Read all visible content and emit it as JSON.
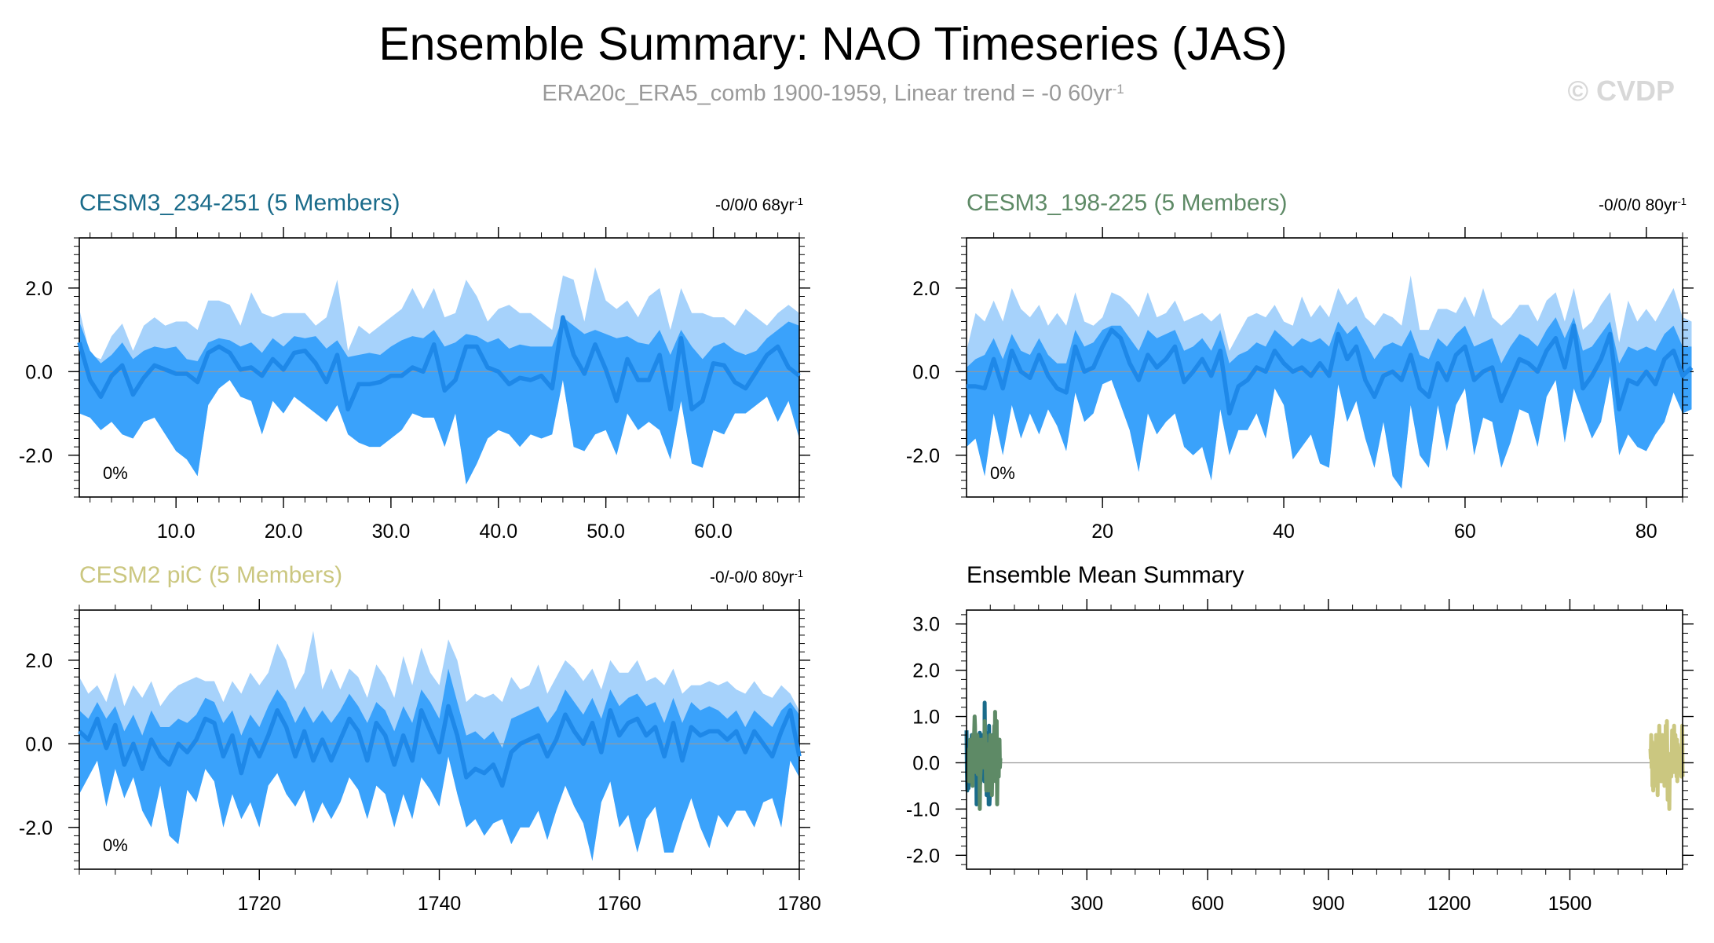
{
  "figure": {
    "title": "Ensemble Summary: NAO Timeseries (JAS)",
    "subtitle": "ERA20c_ERA5_comb 1900-1959, Linear trend = -0 60yr",
    "subtitle_sup": "-1",
    "watermark": "© CVDP"
  },
  "colors": {
    "outer_band": "#a6d2fb",
    "inner_band": "#3aa2fb",
    "mean_line": "#1e88e8",
    "title1": "#1a6b8a",
    "title2": "#5e8a66",
    "title3": "#cbc780",
    "subtitle": "#9a9a9a",
    "watermark": "#d8d8d8",
    "zero_line": "#999999",
    "summary_series": [
      "#1a6b8a",
      "#5e8a66",
      "#cbc780"
    ]
  },
  "chart_data": [
    {
      "type": "area",
      "title": "CESM3_234-251 (5 Members)",
      "trend": "-0/0/0 68yr",
      "trend_sup": "-1",
      "percent_label": "0%",
      "xlim": [
        1,
        68
      ],
      "ylim": [
        -3,
        3.2
      ],
      "x_ticks": [
        10,
        20,
        30,
        40,
        50,
        60
      ],
      "x_tick_labels": [
        "10.0",
        "20.0",
        "30.0",
        "40.0",
        "50.0",
        "60.0"
      ],
      "y_ticks": [
        -2,
        0,
        2
      ],
      "y_tick_labels": [
        "-2.0",
        "0.0",
        "2.0"
      ],
      "x_start": 1,
      "mean": [
        0.7,
        -0.2,
        -0.6,
        -0.1,
        0.15,
        -0.55,
        -0.15,
        0.15,
        0.05,
        -0.05,
        -0.05,
        -0.25,
        0.45,
        0.6,
        0.45,
        0.05,
        0.1,
        -0.1,
        0.3,
        0.05,
        0.45,
        0.5,
        0.2,
        -0.25,
        0.4,
        -0.9,
        -0.3,
        -0.3,
        -0.25,
        -0.1,
        -0.1,
        0.1,
        0.0,
        0.65,
        -0.45,
        -0.2,
        0.6,
        0.6,
        0.1,
        0.0,
        -0.3,
        -0.15,
        -0.2,
        -0.1,
        -0.4,
        1.3,
        0.4,
        -0.05,
        0.65,
        0.05,
        -0.7,
        0.3,
        -0.2,
        -0.2,
        0.4,
        -0.9,
        0.8,
        -0.9,
        -0.7,
        0.2,
        0.15,
        -0.25,
        -0.4,
        0.0,
        0.4,
        0.6,
        0.1,
        -0.1
      ],
      "inner_upper": [
        1.2,
        0.5,
        0.2,
        0.4,
        0.7,
        0.3,
        0.5,
        0.6,
        0.55,
        0.6,
        0.3,
        0.25,
        0.7,
        0.8,
        0.75,
        0.6,
        0.7,
        0.45,
        0.8,
        0.6,
        0.85,
        0.8,
        0.85,
        0.55,
        0.75,
        0.35,
        0.4,
        0.45,
        0.4,
        0.6,
        0.75,
        0.85,
        0.8,
        1.0,
        0.6,
        0.7,
        0.9,
        0.85,
        0.7,
        0.8,
        0.55,
        0.65,
        0.6,
        0.6,
        0.6,
        1.3,
        1.1,
        0.9,
        1.0,
        0.9,
        0.8,
        0.85,
        0.7,
        0.65,
        1.0,
        0.4,
        1.0,
        0.6,
        0.3,
        0.6,
        0.7,
        0.5,
        0.4,
        0.5,
        0.8,
        1.0,
        1.2,
        1.1
      ],
      "inner_lower": [
        -1.0,
        -1.1,
        -1.4,
        -1.2,
        -1.5,
        -1.6,
        -1.2,
        -1.1,
        -1.5,
        -1.9,
        -2.1,
        -2.5,
        -0.8,
        -0.4,
        -0.2,
        -0.6,
        -0.7,
        -1.5,
        -0.7,
        -1.0,
        -0.6,
        -0.8,
        -1.0,
        -1.2,
        -0.8,
        -1.5,
        -1.7,
        -1.8,
        -1.8,
        -1.6,
        -1.4,
        -1.0,
        -1.1,
        -1.1,
        -1.8,
        -1.0,
        -2.7,
        -2.2,
        -1.6,
        -1.4,
        -1.5,
        -1.8,
        -1.5,
        -1.6,
        -1.5,
        -0.2,
        -1.8,
        -1.9,
        -1.5,
        -1.4,
        -2.0,
        -1.0,
        -1.4,
        -1.2,
        -1.4,
        -2.1,
        -0.7,
        -2.2,
        -2.3,
        -1.4,
        -1.5,
        -1.0,
        -1.0,
        -0.8,
        -0.6,
        -1.2,
        -0.7,
        -1.6
      ],
      "outer_upper": [
        1.5,
        0.4,
        0.3,
        0.85,
        1.15,
        0.5,
        1.1,
        1.3,
        1.1,
        1.2,
        1.2,
        1.0,
        1.7,
        1.7,
        1.6,
        1.1,
        1.9,
        1.4,
        1.3,
        1.4,
        1.4,
        1.4,
        1.1,
        1.3,
        2.2,
        0.5,
        1.1,
        0.9,
        1.1,
        1.3,
        1.5,
        2.0,
        1.5,
        2.0,
        1.3,
        1.4,
        2.2,
        1.8,
        1.2,
        1.5,
        1.6,
        1.4,
        1.4,
        1.2,
        1.0,
        2.3,
        2.2,
        1.2,
        2.5,
        1.7,
        1.5,
        1.7,
        1.3,
        1.8,
        2.0,
        1.0,
        2.0,
        1.4,
        1.4,
        1.3,
        1.3,
        1.1,
        1.5,
        1.3,
        1.1,
        1.4,
        1.6,
        1.4
      ],
      "outer_lower": [
        -1.0,
        -1.1,
        -1.4,
        -1.2,
        -1.5,
        -1.6,
        -1.2,
        -1.1,
        -1.5,
        -1.9,
        -2.1,
        -2.5,
        -0.8,
        -0.4,
        -0.2,
        -0.6,
        -0.7,
        -1.5,
        -0.7,
        -1.0,
        -0.6,
        -0.8,
        -1.0,
        -1.2,
        -0.8,
        -1.5,
        -1.7,
        -1.8,
        -1.8,
        -1.6,
        -1.4,
        -1.0,
        -1.1,
        -1.1,
        -1.8,
        -1.0,
        -2.7,
        -2.2,
        -1.6,
        -1.4,
        -1.5,
        -1.8,
        -1.5,
        -1.6,
        -1.5,
        -0.2,
        -1.8,
        -1.9,
        -1.5,
        -1.4,
        -2.0,
        -1.0,
        -1.4,
        -1.2,
        -1.4,
        -2.1,
        -0.7,
        -2.2,
        -2.3,
        -1.4,
        -1.5,
        -1.0,
        -1.0,
        -0.8,
        -0.6,
        -1.2,
        -0.7,
        -1.6
      ]
    },
    {
      "type": "area",
      "title": "CESM3_198-225 (5 Members)",
      "trend": "-0/0/0 80yr",
      "trend_sup": "-1",
      "percent_label": "0%",
      "xlim": [
        5,
        84
      ],
      "ylim": [
        -3,
        3.2
      ],
      "x_ticks": [
        20,
        40,
        60,
        80
      ],
      "x_tick_labels": [
        "20",
        "40",
        "60",
        "80"
      ],
      "y_ticks": [
        -2,
        0,
        2
      ],
      "y_tick_labels": [
        "-2.0",
        "0.0",
        "2.0"
      ],
      "x_start": 5,
      "mean": [
        -0.35,
        -0.35,
        -0.4,
        0.3,
        -0.4,
        0.5,
        0.0,
        -0.15,
        0.4,
        -0.1,
        -0.4,
        -0.5,
        0.6,
        0.0,
        0.1,
        0.6,
        1.0,
        0.8,
        0.2,
        -0.2,
        0.4,
        0.1,
        0.3,
        0.6,
        -0.25,
        0.0,
        0.3,
        -0.1,
        0.5,
        -1.0,
        -0.35,
        -0.2,
        0.1,
        0.0,
        0.5,
        0.2,
        0.0,
        0.1,
        -0.1,
        0.2,
        -0.1,
        0.9,
        0.3,
        0.6,
        -0.2,
        -0.6,
        -0.1,
        0.0,
        -0.2,
        0.4,
        -0.4,
        -0.6,
        0.2,
        -0.2,
        0.4,
        0.6,
        -0.2,
        0.0,
        0.1,
        -0.7,
        -0.2,
        0.3,
        0.2,
        0.0,
        0.5,
        0.8,
        0.1,
        1.1,
        -0.4,
        -0.1,
        0.3,
        0.9,
        -0.9,
        -0.2,
        -0.3,
        0.0,
        -0.3,
        0.3,
        0.5,
        -0.1,
        0.1
      ],
      "inner_upper": [
        0.1,
        0.3,
        0.4,
        0.8,
        0.3,
        0.9,
        0.5,
        0.4,
        0.8,
        0.4,
        0.2,
        0.2,
        1.0,
        0.6,
        0.7,
        1.0,
        1.1,
        1.1,
        0.8,
        0.5,
        1.0,
        0.8,
        0.9,
        1.0,
        0.5,
        0.6,
        0.8,
        0.5,
        1.0,
        0.2,
        0.4,
        0.5,
        0.7,
        0.6,
        1.0,
        0.8,
        0.6,
        0.8,
        0.7,
        0.8,
        0.6,
        1.2,
        0.9,
        1.1,
        0.7,
        0.3,
        0.6,
        0.7,
        0.6,
        1.0,
        0.4,
        0.3,
        0.8,
        0.6,
        0.9,
        1.1,
        0.6,
        0.7,
        0.8,
        0.2,
        0.6,
        0.9,
        0.8,
        0.6,
        1.0,
        1.3,
        0.8,
        1.3,
        0.5,
        0.6,
        0.9,
        1.2,
        0.2,
        0.6,
        0.5,
        0.6,
        0.5,
        0.9,
        1.1,
        0.6,
        0.6
      ],
      "inner_lower": [
        -1.8,
        -1.6,
        -2.5,
        -1.0,
        -2.0,
        -0.8,
        -1.6,
        -1.0,
        -1.5,
        -0.9,
        -1.3,
        -1.9,
        -0.5,
        -1.2,
        -1.0,
        -0.3,
        -0.2,
        -0.8,
        -1.4,
        -2.4,
        -1.0,
        -1.5,
        -1.2,
        -1.0,
        -1.8,
        -2.0,
        -1.8,
        -2.6,
        -0.9,
        -2.0,
        -1.4,
        -1.4,
        -1.0,
        -1.6,
        -0.4,
        -0.8,
        -2.1,
        -1.8,
        -1.5,
        -2.2,
        -2.3,
        -0.3,
        -1.2,
        -0.7,
        -1.6,
        -2.3,
        -1.2,
        -2.5,
        -2.8,
        -0.8,
        -2.0,
        -2.3,
        -0.8,
        -1.9,
        -0.8,
        -0.4,
        -2.0,
        -1.1,
        -1.2,
        -2.3,
        -1.7,
        -0.9,
        -1.0,
        -1.8,
        -0.6,
        -0.2,
        -1.7,
        -0.4,
        -1.0,
        -1.6,
        -1.2,
        -0.1,
        -2.0,
        -1.5,
        -1.8,
        -1.9,
        -1.5,
        -1.2,
        -0.5,
        -1.0,
        -0.9
      ],
      "outer_upper": [
        0.5,
        1.4,
        1.2,
        1.7,
        1.2,
        2.0,
        1.5,
        1.3,
        1.6,
        1.1,
        1.4,
        1.1,
        1.9,
        1.2,
        1.1,
        1.3,
        1.9,
        1.8,
        1.6,
        1.3,
        1.9,
        1.3,
        1.4,
        1.7,
        1.2,
        1.3,
        1.4,
        1.2,
        1.4,
        0.5,
        0.9,
        1.3,
        1.4,
        1.3,
        1.6,
        1.2,
        1.1,
        1.8,
        1.3,
        1.6,
        1.3,
        2.0,
        1.6,
        1.8,
        1.3,
        1.1,
        1.4,
        1.3,
        1.1,
        2.3,
        1.0,
        1.0,
        1.5,
        1.5,
        1.4,
        1.8,
        1.3,
        2.0,
        1.3,
        1.1,
        1.3,
        1.6,
        1.6,
        1.2,
        1.7,
        1.9,
        1.2,
        2.0,
        1.0,
        1.2,
        1.6,
        1.9,
        0.7,
        1.7,
        1.2,
        1.5,
        1.2,
        1.6,
        2.0,
        1.3,
        1.2
      ],
      "outer_lower": [
        -1.8,
        -1.6,
        -2.5,
        -1.0,
        -2.0,
        -0.8,
        -1.6,
        -1.0,
        -1.5,
        -0.9,
        -1.3,
        -1.9,
        -0.5,
        -1.2,
        -1.0,
        -0.3,
        -0.2,
        -0.8,
        -1.4,
        -2.4,
        -1.0,
        -1.5,
        -1.2,
        -1.0,
        -1.8,
        -2.0,
        -1.8,
        -2.6,
        -0.9,
        -2.0,
        -1.4,
        -1.4,
        -1.0,
        -1.6,
        -0.4,
        -0.8,
        -2.1,
        -1.8,
        -1.5,
        -2.2,
        -2.3,
        -0.3,
        -1.2,
        -0.7,
        -1.6,
        -2.3,
        -1.2,
        -2.5,
        -2.8,
        -0.8,
        -2.0,
        -2.3,
        -0.8,
        -1.9,
        -0.8,
        -0.4,
        -2.0,
        -1.1,
        -1.2,
        -2.3,
        -1.7,
        -0.9,
        -1.0,
        -1.8,
        -0.6,
        -0.2,
        -1.7,
        -0.4,
        -1.0,
        -1.6,
        -1.2,
        -0.1,
        -2.0,
        -1.5,
        -1.8,
        -1.9,
        -1.5,
        -1.2,
        -0.5,
        -1.0,
        -0.9
      ]
    },
    {
      "type": "area",
      "title": "CESM2 piC (5 Members)",
      "trend": "-0/-0/0 80yr",
      "trend_sup": "-1",
      "percent_label": "0%",
      "xlim": [
        1700,
        1780
      ],
      "ylim": [
        -3,
        3.2
      ],
      "x_ticks": [
        1720,
        1740,
        1760,
        1780
      ],
      "x_tick_labels": [
        "1720",
        "1740",
        "1760",
        "1780"
      ],
      "y_ticks": [
        -2,
        0,
        2
      ],
      "y_tick_labels": [
        "-2.0",
        "0.0",
        "2.0"
      ],
      "x_start": 1700,
      "mean": [
        0.3,
        0.1,
        0.6,
        -0.1,
        0.45,
        -0.5,
        0.0,
        -0.6,
        0.1,
        -0.3,
        -0.5,
        0.0,
        -0.2,
        0.1,
        0.6,
        0.5,
        -0.3,
        0.2,
        -0.7,
        0.1,
        -0.3,
        0.2,
        0.8,
        0.4,
        -0.3,
        0.3,
        -0.4,
        0.1,
        -0.4,
        0.1,
        0.6,
        0.3,
        -0.4,
        0.5,
        0.2,
        -0.5,
        0.2,
        -0.4,
        0.8,
        0.3,
        -0.2,
        0.9,
        0.2,
        -0.8,
        -0.6,
        -0.7,
        -0.5,
        -1.0,
        -0.2,
        0.0,
        0.1,
        0.2,
        -0.3,
        0.1,
        0.7,
        0.3,
        0.0,
        0.5,
        -0.2,
        0.8,
        0.2,
        0.5,
        0.6,
        0.2,
        0.4,
        -0.3,
        0.5,
        -0.4,
        0.4,
        0.2,
        0.3,
        0.3,
        0.1,
        0.3,
        -0.2,
        0.3,
        0.0,
        -0.3,
        0.3,
        0.8,
        -0.3
      ],
      "inner_upper": [
        0.8,
        0.6,
        1.0,
        0.6,
        0.9,
        0.3,
        0.7,
        0.2,
        0.8,
        0.4,
        0.4,
        0.6,
        0.5,
        0.7,
        1.1,
        1.0,
        0.5,
        0.8,
        0.2,
        0.7,
        0.4,
        0.9,
        1.3,
        1.0,
        0.5,
        0.9,
        0.5,
        0.8,
        0.5,
        0.8,
        1.2,
        0.9,
        0.5,
        1.0,
        0.8,
        0.3,
        0.9,
        0.5,
        1.3,
        1.0,
        0.6,
        1.8,
        1.0,
        0.2,
        0.3,
        0.1,
        0.3,
        -0.1,
        0.6,
        0.7,
        0.8,
        0.9,
        0.5,
        0.8,
        1.3,
        1.0,
        0.7,
        1.1,
        0.6,
        1.3,
        0.9,
        1.1,
        1.2,
        0.9,
        1.0,
        0.5,
        1.1,
        0.5,
        1.0,
        0.8,
        0.9,
        0.8,
        0.6,
        0.8,
        0.4,
        0.8,
        0.6,
        0.4,
        0.8,
        1.0,
        0.7
      ],
      "inner_lower": [
        -1.2,
        -0.8,
        -0.4,
        -1.5,
        -0.6,
        -1.3,
        -0.8,
        -1.6,
        -2.0,
        -1.0,
        -2.2,
        -2.4,
        -1.1,
        -1.4,
        -0.6,
        -0.9,
        -2.0,
        -1.2,
        -1.8,
        -1.4,
        -2.0,
        -1.0,
        -0.7,
        -1.2,
        -1.5,
        -1.1,
        -1.9,
        -1.4,
        -1.8,
        -1.4,
        -0.8,
        -1.1,
        -1.8,
        -1.0,
        -1.2,
        -2.0,
        -1.2,
        -1.8,
        -0.8,
        -1.1,
        -1.5,
        -0.3,
        -1.2,
        -2.0,
        -1.8,
        -2.2,
        -1.9,
        -1.8,
        -2.4,
        -2.0,
        -2.0,
        -1.6,
        -2.3,
        -1.6,
        -1.0,
        -1.5,
        -1.9,
        -2.8,
        -1.4,
        -0.9,
        -2.0,
        -1.7,
        -2.6,
        -1.8,
        -1.5,
        -2.6,
        -2.6,
        -1.9,
        -1.3,
        -2.0,
        -2.5,
        -1.7,
        -2.0,
        -1.6,
        -1.6,
        -2.0,
        -1.4,
        -1.3,
        -2.0,
        -0.4,
        -0.8
      ],
      "outer_upper": [
        1.6,
        1.2,
        1.4,
        1.0,
        1.7,
        0.9,
        1.4,
        1.1,
        1.5,
        0.9,
        1.2,
        1.4,
        1.5,
        1.6,
        1.5,
        1.5,
        1.0,
        1.5,
        1.2,
        1.7,
        1.4,
        1.7,
        2.4,
        2.0,
        1.3,
        1.7,
        2.7,
        1.3,
        1.8,
        1.3,
        1.8,
        1.6,
        1.1,
        1.9,
        1.6,
        1.1,
        2.1,
        1.4,
        2.3,
        1.7,
        1.4,
        2.5,
        2.0,
        1.0,
        1.2,
        1.1,
        1.2,
        1.0,
        1.6,
        1.3,
        1.4,
        1.9,
        1.2,
        1.6,
        2.0,
        1.8,
        1.5,
        1.8,
        1.3,
        2.0,
        1.7,
        1.7,
        2.0,
        1.5,
        1.6,
        1.4,
        1.8,
        1.2,
        1.4,
        1.4,
        1.5,
        1.4,
        1.5,
        1.3,
        1.2,
        1.5,
        1.2,
        1.1,
        1.4,
        1.2,
        0.8
      ],
      "outer_lower": [
        -1.2,
        -0.8,
        -0.4,
        -1.5,
        -0.6,
        -1.3,
        -0.8,
        -1.6,
        -2.0,
        -1.0,
        -2.2,
        -2.4,
        -1.1,
        -1.4,
        -0.6,
        -0.9,
        -2.0,
        -1.2,
        -1.8,
        -1.4,
        -2.0,
        -1.0,
        -0.7,
        -1.2,
        -1.5,
        -1.1,
        -1.9,
        -1.4,
        -1.8,
        -1.4,
        -0.8,
        -1.1,
        -1.8,
        -1.0,
        -1.2,
        -2.0,
        -1.2,
        -1.8,
        -0.8,
        -1.1,
        -1.5,
        -0.3,
        -1.2,
        -2.0,
        -1.8,
        -2.2,
        -1.9,
        -1.8,
        -2.4,
        -2.0,
        -2.0,
        -1.6,
        -2.3,
        -1.6,
        -1.0,
        -1.5,
        -1.9,
        -2.8,
        -1.4,
        -0.9,
        -2.0,
        -1.7,
        -2.6,
        -1.8,
        -1.5,
        -2.6,
        -2.6,
        -1.9,
        -1.3,
        -2.0,
        -2.5,
        -1.7,
        -2.0,
        -1.6,
        -1.6,
        -2.0,
        -1.4,
        -1.3,
        -2.0,
        -0.4,
        -0.8
      ]
    },
    {
      "type": "line",
      "title": "Ensemble Mean Summary",
      "xlim": [
        1,
        1780
      ],
      "ylim": [
        -2.3,
        3.3
      ],
      "x_ticks": [
        300,
        600,
        900,
        1200,
        1500
      ],
      "x_tick_labels": [
        "300",
        "600",
        "900",
        "1200",
        "1500"
      ],
      "y_ticks": [
        -2,
        -1,
        0,
        1,
        2,
        3
      ],
      "y_tick_labels": [
        "-2.0",
        "-1.0",
        "0.0",
        "1.0",
        "2.0",
        "3.0"
      ],
      "series": [
        {
          "name": "CESM3_234-251 (5 Members)",
          "x_start": 1,
          "source_index": 0
        },
        {
          "name": "CESM3_198-225 (5 Members)",
          "x_start": 5,
          "source_index": 1
        },
        {
          "name": "CESM2 piC (5 Members)",
          "x_start": 1700,
          "source_index": 2
        }
      ]
    }
  ]
}
